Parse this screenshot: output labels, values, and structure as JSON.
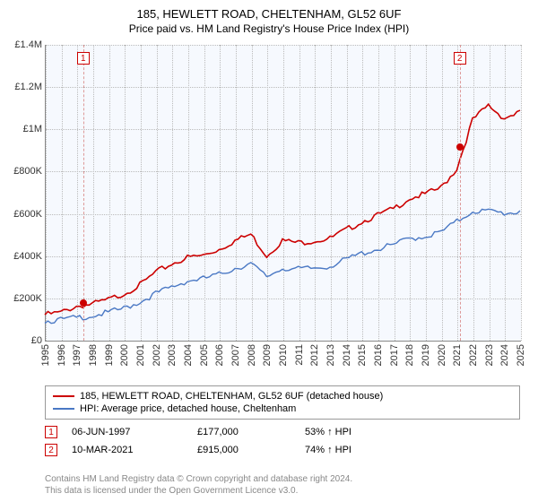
{
  "title": "185, HEWLETT ROAD, CHELTENHAM, GL52 6UF",
  "subtitle": "Price paid vs. HM Land Registry's House Price Index (HPI)",
  "chart": {
    "type": "line",
    "background_color": "#f6f9fe",
    "grid_color": "#bbbbbb",
    "axis_color": "#888888",
    "ylim": [
      0,
      1400000
    ],
    "ytick_step": 200000,
    "y_labels": [
      "£0",
      "£200K",
      "£400K",
      "£600K",
      "£800K",
      "£1M",
      "£1.2M",
      "£1.4M"
    ],
    "x_years": [
      1995,
      1996,
      1997,
      1998,
      1999,
      2000,
      2001,
      2002,
      2003,
      2004,
      2005,
      2006,
      2007,
      2008,
      2009,
      2010,
      2011,
      2012,
      2013,
      2014,
      2015,
      2016,
      2017,
      2018,
      2019,
      2020,
      2021,
      2022,
      2023,
      2024,
      2025
    ],
    "series": [
      {
        "name": "185, HEWLETT ROAD, CHELTENHAM, GL52 6UF (detached house)",
        "color": "#cc0000",
        "line_width": 1.6,
        "data": [
          130000,
          140000,
          170000,
          180000,
          200000,
          230000,
          270000,
          330000,
          370000,
          400000,
          410000,
          440000,
          480000,
          510000,
          410000,
          480000,
          470000,
          480000,
          490000,
          530000,
          570000,
          600000,
          630000,
          680000,
          700000,
          730000,
          820000,
          1050000,
          1120000,
          1060000,
          1090000
        ]
      },
      {
        "name": "HPI: Average price, detached house, Cheltenham",
        "color": "#4a78c4",
        "line_width": 1.4,
        "data": [
          100000,
          105000,
          115000,
          125000,
          140000,
          160000,
          190000,
          230000,
          260000,
          290000,
          300000,
          320000,
          350000,
          370000,
          310000,
          350000,
          345000,
          350000,
          360000,
          390000,
          420000,
          440000,
          460000,
          490000,
          500000,
          520000,
          570000,
          620000,
          620000,
          610000,
          615000
        ]
      }
    ],
    "markers": [
      {
        "n": "1",
        "year": 1997.42,
        "price": 177000
      },
      {
        "n": "2",
        "year": 2021.19,
        "price": 915000
      }
    ]
  },
  "legend": [
    {
      "color": "#cc0000",
      "label": "185, HEWLETT ROAD, CHELTENHAM, GL52 6UF (detached house)"
    },
    {
      "color": "#4a78c4",
      "label": "HPI: Average price, detached house, Cheltenham"
    }
  ],
  "transactions": [
    {
      "n": "1",
      "date": "06-JUN-1997",
      "price": "£177,000",
      "ratio": "53% ↑ HPI"
    },
    {
      "n": "2",
      "date": "10-MAR-2021",
      "price": "£915,000",
      "ratio": "74% ↑ HPI"
    }
  ],
  "footer_line1": "Contains HM Land Registry data © Crown copyright and database right 2024.",
  "footer_line2": "This data is licensed under the Open Government Licence v3.0."
}
